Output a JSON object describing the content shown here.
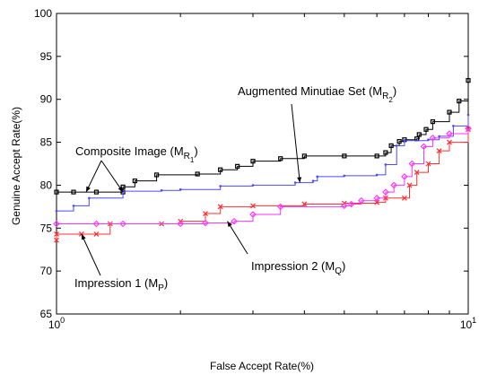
{
  "chart_data": {
    "type": "line",
    "xscale": "log",
    "xlim": [
      1,
      10
    ],
    "ylim": [
      65,
      100
    ],
    "xlabel": "False Accept Rate(%)",
    "ylabel": "Genuine Accept Rate(%)",
    "grid": false,
    "x_ticks": [
      {
        "value": 1,
        "base": "10",
        "exp": "0"
      },
      {
        "value": 10,
        "base": "10",
        "exp": "1"
      }
    ],
    "y_ticks": [
      65,
      70,
      75,
      80,
      85,
      90,
      95,
      100
    ],
    "series": [
      {
        "name": "Composite Image (M_R1)",
        "color": "#000000",
        "marker": "square",
        "points": [
          [
            1.0,
            79.2
          ],
          [
            1.1,
            79.2
          ],
          [
            1.25,
            79.2
          ],
          [
            1.45,
            79.2
          ],
          [
            1.45,
            79.8
          ],
          [
            1.55,
            80.5
          ],
          [
            1.75,
            81.2
          ],
          [
            2.2,
            81.3
          ],
          [
            2.5,
            81.8
          ],
          [
            2.75,
            82.2
          ],
          [
            3.0,
            82.8
          ],
          [
            3.5,
            83.1
          ],
          [
            4.0,
            83.4
          ],
          [
            5.0,
            83.4
          ],
          [
            6.0,
            83.4
          ],
          [
            6.3,
            83.8
          ],
          [
            6.5,
            84.6
          ],
          [
            6.8,
            85.1
          ],
          [
            7.0,
            85.3
          ],
          [
            7.5,
            85.4
          ],
          [
            7.6,
            85.9
          ],
          [
            7.9,
            86.5
          ],
          [
            8.2,
            87.4
          ],
          [
            9.0,
            88.5
          ],
          [
            9.5,
            89.8
          ],
          [
            10.0,
            92.2
          ]
        ]
      },
      {
        "name": "Augmented Minutiae Set (M_R2)",
        "color": "#4a4aff",
        "marker": "dot",
        "points": [
          [
            1.0,
            77.0
          ],
          [
            1.1,
            77.6
          ],
          [
            1.2,
            78.5
          ],
          [
            1.45,
            79.3
          ],
          [
            1.8,
            79.4
          ],
          [
            2.0,
            79.5
          ],
          [
            2.5,
            79.9
          ],
          [
            3.0,
            80.0
          ],
          [
            3.8,
            80.3
          ],
          [
            4.2,
            80.5
          ],
          [
            4.3,
            81.0
          ],
          [
            5.0,
            81.1
          ],
          [
            6.0,
            81.2
          ],
          [
            6.3,
            82.4
          ],
          [
            6.7,
            84.6
          ],
          [
            7.0,
            85.2
          ],
          [
            8.0,
            85.3
          ],
          [
            8.5,
            85.7
          ],
          [
            9.2,
            86.9
          ],
          [
            10.0,
            88.2
          ]
        ]
      },
      {
        "name": "Impression 1 (M_P)",
        "color": "#ff3030",
        "marker": "x",
        "points": [
          [
            1.0,
            73.6
          ],
          [
            1.0,
            74.3
          ],
          [
            1.15,
            74.3
          ],
          [
            1.25,
            74.3
          ],
          [
            1.35,
            75.5
          ],
          [
            1.8,
            75.5
          ],
          [
            2.0,
            75.8
          ],
          [
            2.3,
            76.7
          ],
          [
            2.5,
            77.5
          ],
          [
            3.0,
            77.6
          ],
          [
            4.0,
            77.8
          ],
          [
            5.0,
            77.9
          ],
          [
            6.0,
            78.0
          ],
          [
            6.3,
            78.5
          ],
          [
            7.0,
            78.5
          ],
          [
            7.2,
            80.0
          ],
          [
            7.5,
            81.5
          ],
          [
            8.0,
            82.5
          ],
          [
            8.5,
            84.0
          ],
          [
            9.0,
            85.0
          ],
          [
            10.0,
            86.5
          ]
        ]
      },
      {
        "name": "Impression 2 (M_Q)",
        "color": "#ff33ff",
        "marker": "diamond",
        "points": [
          [
            1.0,
            75.5
          ],
          [
            1.25,
            75.5
          ],
          [
            1.45,
            75.5
          ],
          [
            2.0,
            75.5
          ],
          [
            2.3,
            75.6
          ],
          [
            2.7,
            75.8
          ],
          [
            3.0,
            76.6
          ],
          [
            3.5,
            77.5
          ],
          [
            5.0,
            77.6
          ],
          [
            5.2,
            77.8
          ],
          [
            5.5,
            78.2
          ],
          [
            6.0,
            78.5
          ],
          [
            6.3,
            79.2
          ],
          [
            6.6,
            80.0
          ],
          [
            7.0,
            81.0
          ],
          [
            7.3,
            82.5
          ],
          [
            7.8,
            84.5
          ],
          [
            8.2,
            85.5
          ],
          [
            9.0,
            86.0
          ],
          [
            10.0,
            86.6
          ]
        ]
      }
    ],
    "annotations": [
      {
        "text": "Composite Image (M",
        "sub": "R",
        "subsub": "1",
        "close": ")"
      },
      {
        "text": "Augmented Minutiae Set (M",
        "sub": "R",
        "subsub": "2",
        "close": ")"
      },
      {
        "text": "Impression 1 (M",
        "sub": "P",
        "subsub": "",
        "close": ")"
      },
      {
        "text": "Impression 2 (M",
        "sub": "Q",
        "subsub": "",
        "close": ")"
      }
    ]
  }
}
